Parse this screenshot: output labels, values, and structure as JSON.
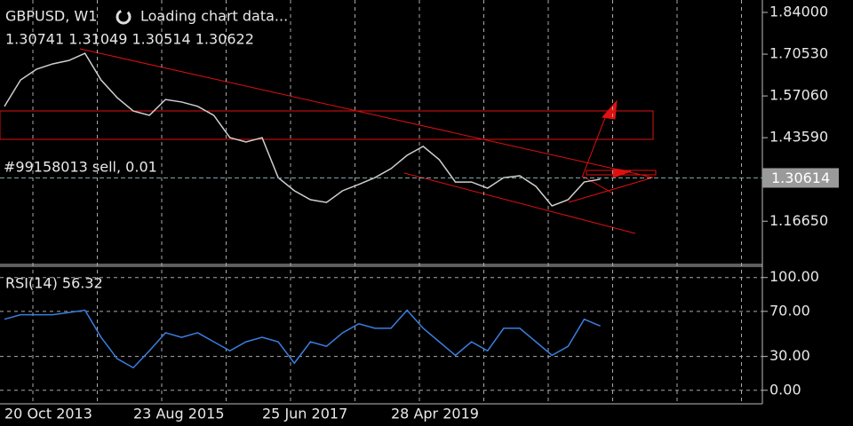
{
  "chart_data": [
    {
      "type": "line",
      "title": "GBPUSD, W1",
      "status": "Loading chart data...",
      "ohlc": "1.30741 1.31049 1.30514 1.30622",
      "order_label": "#99158013 sell, 0.01",
      "current_price": 1.30614,
      "color": "#cfcfcf",
      "categories": [
        "20 Oct 2013",
        null,
        null,
        null,
        null,
        null,
        null,
        null,
        "23 Aug 2015",
        null,
        null,
        null,
        null,
        null,
        null,
        null,
        "25 Jun 2017",
        null,
        null,
        null,
        null,
        null,
        null,
        null,
        "28 Apr 2019",
        null,
        null,
        null,
        null,
        null,
        null,
        null,
        null,
        null,
        null,
        null,
        null,
        null
      ],
      "values": [
        1.537,
        1.622,
        1.657,
        1.674,
        1.685,
        1.708,
        1.622,
        1.565,
        1.522,
        1.508,
        1.559,
        1.551,
        1.537,
        1.508,
        1.436,
        1.422,
        1.436,
        1.307,
        1.265,
        1.236,
        1.227,
        1.265,
        1.285,
        1.307,
        1.336,
        1.379,
        1.408,
        1.365,
        1.293,
        1.293,
        1.273,
        1.307,
        1.313,
        1.279,
        1.216,
        1.236,
        1.293,
        1.302
      ],
      "ylim": [
        1.027,
        1.88
      ],
      "yticks": [
        {
          "value": 1.84,
          "label": "1.84000"
        },
        {
          "value": 1.7053,
          "label": "1.70530"
        },
        {
          "value": 1.5706,
          "label": "1.57060"
        },
        {
          "value": 1.4359,
          "label": "1.43590"
        },
        {
          "value": 1.1665,
          "label": "1.16650"
        }
      ]
    },
    {
      "type": "line",
      "title": "RSI(14) 56.32",
      "color": "#3a7fe0",
      "values": [
        63,
        67,
        67,
        67,
        69,
        71,
        47,
        28,
        20,
        35,
        51,
        47,
        51,
        43,
        35,
        43,
        47,
        43,
        24,
        43,
        39,
        51,
        59,
        55,
        55,
        71,
        55,
        43,
        31,
        43,
        35,
        55,
        55,
        43,
        31,
        39,
        63,
        57
      ],
      "ylim": [
        -12,
        110
      ],
      "yticks": [
        {
          "value": 100,
          "label": "100.00"
        },
        {
          "value": 70,
          "label": "70.00"
        },
        {
          "value": 30,
          "label": "30.00"
        },
        {
          "value": 0,
          "label": "0.00"
        }
      ],
      "grid": true
    }
  ]
}
